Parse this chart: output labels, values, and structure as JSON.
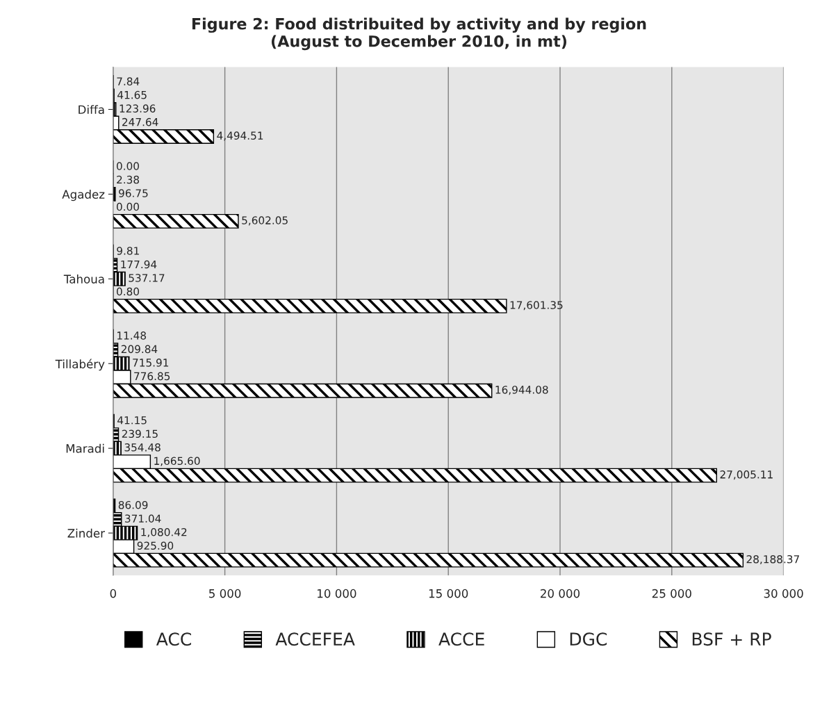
{
  "chart_data": {
    "type": "bar",
    "orientation": "horizontal",
    "title": "Figure 2: Food distribuited by activity and by region\n(August to December 2010, in mt)",
    "categories": [
      "Diffa",
      "Agadez",
      "Tahoua",
      "Tillabéry",
      "Maradi",
      "Zinder"
    ],
    "series": [
      {
        "name": "ACC",
        "color": "#000000",
        "values": [
          7.84,
          0.0,
          9.81,
          11.48,
          41.15,
          86.09
        ],
        "value_labels": [
          "7.84",
          "0.00",
          "9.81",
          "11.48",
          "41.15",
          "86.09"
        ]
      },
      {
        "name": "ACCEFEA",
        "color": "#000000",
        "values": [
          41.65,
          2.38,
          177.94,
          209.84,
          239.15,
          371.04
        ],
        "value_labels": [
          "41.65",
          "2.38",
          "177.94",
          "209.84",
          "239.15",
          "371.04"
        ]
      },
      {
        "name": "ACCE",
        "color": "#000000",
        "values": [
          123.96,
          96.75,
          537.17,
          715.91,
          354.48,
          1080.42
        ],
        "value_labels": [
          "123.96",
          "96.75",
          "537.17",
          "715.91",
          "354.48",
          "1,080.42"
        ]
      },
      {
        "name": "DGC",
        "color": "#ffffff",
        "values": [
          247.64,
          0.0,
          0.8,
          776.85,
          1665.6,
          925.9
        ],
        "value_labels": [
          "247.64",
          "0.00",
          "0.80",
          "776.85",
          "1,665.60",
          "925.90"
        ]
      },
      {
        "name": "BSF + RP",
        "color": "#000000",
        "values": [
          4494.51,
          5602.05,
          17601.35,
          16944.08,
          27005.11,
          28188.37
        ],
        "value_labels": [
          "4,494.51",
          "5,602.05",
          "17,601.35",
          "16,944.08",
          "27,005.11",
          "28,188.37"
        ]
      }
    ],
    "xlim": [
      0,
      30000
    ],
    "xticks": [
      0,
      {
        "value": 5000,
        "label": "5 000"
      },
      {
        "value": 10000,
        "label": "10 000"
      },
      {
        "value": 15000,
        "label": "15 000"
      },
      {
        "value": 20000,
        "label": "20 000"
      },
      {
        "value": 25000,
        "label": "25 000"
      },
      {
        "value": 30000,
        "label": "30 000"
      }
    ],
    "grid": "x",
    "legend": "bottom"
  }
}
